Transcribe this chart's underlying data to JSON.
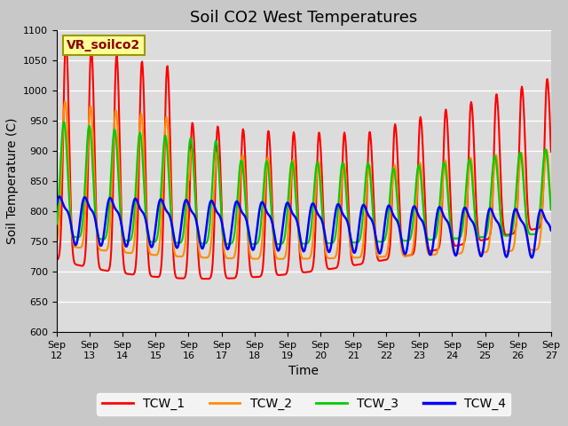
{
  "title": "Soil CO2 West Temperatures",
  "xlabel": "Time",
  "ylabel": "Soil Temperature (C)",
  "ylim": [
    600,
    1100
  ],
  "annotation": "VR_soilco2",
  "plot_bg_color": "#dcdcdc",
  "fig_bg_color": "#c8c8c8",
  "line_colors": {
    "TCW_1": "#ff0000",
    "TCW_2": "#ff8c00",
    "TCW_3": "#00cc00",
    "TCW_4": "#0000ff"
  },
  "xtick_labels": [
    "Sep 12",
    "Sep 13",
    "Sep 14",
    "Sep 15",
    "Sep 16",
    "Sep 17",
    "Sep 18",
    "Sep 19",
    "Sep 20",
    "Sep 21",
    "Sep 22",
    "Sep 23",
    "Sep 24",
    "Sep 25",
    "Sep 26",
    "Sep 27"
  ],
  "title_fontsize": 13,
  "axis_fontsize": 10,
  "tick_fontsize": 8,
  "legend_fontsize": 10
}
